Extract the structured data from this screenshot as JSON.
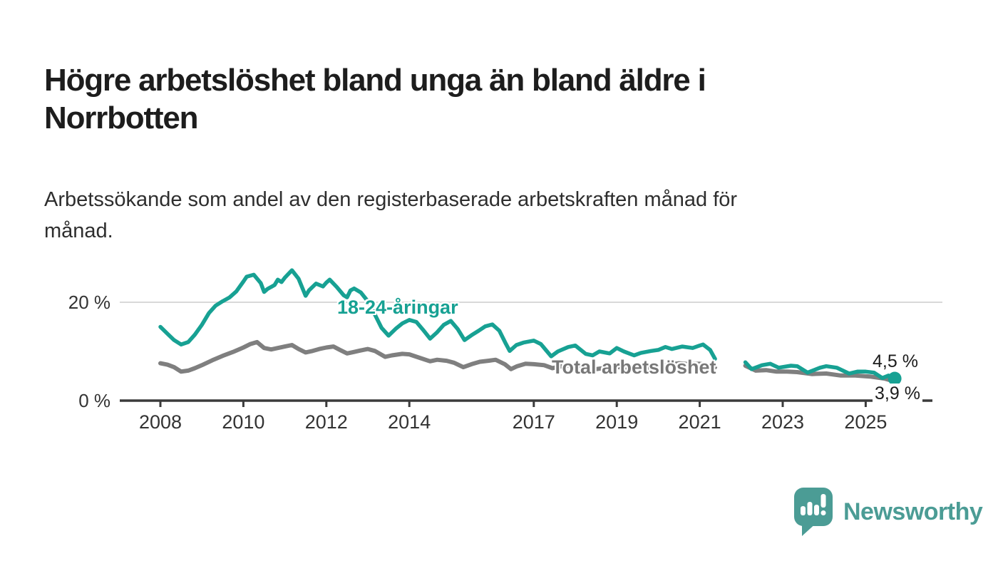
{
  "header": {
    "title": "Högre arbetslöshet bland unga än bland äldre i\nNorrbotten",
    "subtitle": "Arbetssökande som andel av den registerbaserade arbetskraften månad för\nmånad."
  },
  "branding": {
    "logo_text": "Newsworthy",
    "logo_icon": "newsworthy-speech-bubble-bar-chart-icon"
  },
  "colors": {
    "youth_line": "#17a193",
    "total_line": "#7f7f7f",
    "axis": "#3b3b3b",
    "grid": "#d9d9d9",
    "logo_teal": "#4b9c95",
    "text": "#1d1d1d"
  },
  "chart_data": {
    "type": "line",
    "title": "Högre arbetslöshet bland unga än bland äldre i Norrbotten",
    "subtitle": "Arbetssökande som andel av den registerbaserade arbetskraften månad för månad.",
    "unit": "%",
    "xlim": [
      2007.0,
      2026.6
    ],
    "ylim": [
      0,
      27.5
    ],
    "grid": "horizontal-only",
    "legend_position": "inline-labels",
    "x_ticks": [
      {
        "year": 2008,
        "label": "2008"
      },
      {
        "year": 2010,
        "label": "2010"
      },
      {
        "year": 2012,
        "label": "2012"
      },
      {
        "year": 2014,
        "label": "2014"
      },
      {
        "year": 2017,
        "label": "2017"
      },
      {
        "year": 2019,
        "label": "2019"
      },
      {
        "year": 2021,
        "label": "2021"
      },
      {
        "year": 2023,
        "label": "2023"
      },
      {
        "year": 2025,
        "label": "2025"
      }
    ],
    "y_ticks": [
      {
        "value": 0,
        "label": "0 %"
      },
      {
        "value": 20,
        "label": "20 %"
      }
    ],
    "series": [
      {
        "name": "18-24-åringar",
        "color": "#17a193",
        "end_value": 4.5,
        "end_label": "4,5 %",
        "segments": [
          [
            [
              2008.0,
              15.0
            ],
            [
              2008.17,
              13.6
            ],
            [
              2008.33,
              12.3
            ],
            [
              2008.5,
              11.4
            ],
            [
              2008.67,
              11.9
            ],
            [
              2008.83,
              13.4
            ],
            [
              2009.0,
              15.4
            ],
            [
              2009.17,
              17.8
            ],
            [
              2009.33,
              19.3
            ],
            [
              2009.5,
              20.2
            ],
            [
              2009.67,
              21.0
            ],
            [
              2009.83,
              22.2
            ],
            [
              2010.0,
              24.2
            ],
            [
              2010.08,
              25.2
            ],
            [
              2010.25,
              25.6
            ],
            [
              2010.42,
              23.9
            ],
            [
              2010.5,
              22.1
            ],
            [
              2010.58,
              22.7
            ],
            [
              2010.75,
              23.5
            ],
            [
              2010.83,
              24.6
            ],
            [
              2010.92,
              24.1
            ],
            [
              2011.0,
              25.0
            ],
            [
              2011.17,
              26.5
            ],
            [
              2011.33,
              24.8
            ],
            [
              2011.5,
              21.3
            ],
            [
              2011.58,
              22.4
            ],
            [
              2011.75,
              23.8
            ],
            [
              2011.92,
              23.2
            ],
            [
              2012.0,
              24.0
            ],
            [
              2012.08,
              24.6
            ],
            [
              2012.25,
              23.1
            ],
            [
              2012.42,
              21.4
            ],
            [
              2012.5,
              21.0
            ],
            [
              2012.58,
              22.4
            ],
            [
              2012.67,
              22.8
            ],
            [
              2012.83,
              22.0
            ],
            [
              2013.0,
              20.2
            ],
            [
              2013.17,
              17.5
            ],
            [
              2013.33,
              14.8
            ],
            [
              2013.5,
              13.2
            ],
            [
              2013.67,
              14.6
            ],
            [
              2013.83,
              15.7
            ],
            [
              2014.0,
              16.4
            ],
            [
              2014.17,
              16.0
            ],
            [
              2014.33,
              14.4
            ],
            [
              2014.5,
              12.6
            ],
            [
              2014.67,
              13.9
            ],
            [
              2014.83,
              15.4
            ],
            [
              2015.0,
              16.2
            ],
            [
              2015.17,
              14.5
            ],
            [
              2015.33,
              12.3
            ],
            [
              2015.5,
              13.3
            ],
            [
              2015.67,
              14.2
            ],
            [
              2015.83,
              15.1
            ],
            [
              2016.0,
              15.5
            ],
            [
              2016.17,
              14.2
            ],
            [
              2016.33,
              11.5
            ],
            [
              2016.42,
              10.1
            ],
            [
              2016.58,
              11.3
            ],
            [
              2016.75,
              11.8
            ],
            [
              2017.0,
              12.2
            ],
            [
              2017.17,
              11.5
            ],
            [
              2017.42,
              9.0
            ],
            [
              2017.58,
              10.0
            ],
            [
              2017.83,
              10.9
            ],
            [
              2018.0,
              11.2
            ],
            [
              2018.25,
              9.5
            ],
            [
              2018.42,
              9.2
            ],
            [
              2018.58,
              10.0
            ],
            [
              2018.83,
              9.6
            ],
            [
              2019.0,
              10.7
            ],
            [
              2019.17,
              10.0
            ],
            [
              2019.42,
              9.2
            ],
            [
              2019.58,
              9.7
            ],
            [
              2019.83,
              10.1
            ],
            [
              2020.0,
              10.3
            ],
            [
              2020.17,
              10.9
            ],
            [
              2020.33,
              10.5
            ],
            [
              2020.58,
              11.0
            ],
            [
              2020.83,
              10.7
            ],
            [
              2021.0,
              11.2
            ],
            [
              2021.08,
              11.4
            ],
            [
              2021.25,
              10.3
            ],
            [
              2021.37,
              8.5
            ]
          ],
          [
            [
              2022.1,
              7.8
            ],
            [
              2022.25,
              6.4
            ],
            [
              2022.5,
              7.2
            ],
            [
              2022.7,
              7.5
            ],
            [
              2022.9,
              6.7
            ],
            [
              2023.2,
              7.1
            ],
            [
              2023.35,
              7.0
            ],
            [
              2023.6,
              5.7
            ],
            [
              2023.9,
              6.7
            ],
            [
              2024.05,
              7.0
            ],
            [
              2024.3,
              6.7
            ],
            [
              2024.6,
              5.5
            ],
            [
              2024.8,
              5.9
            ],
            [
              2025.0,
              5.9
            ],
            [
              2025.2,
              5.7
            ],
            [
              2025.4,
              4.6
            ],
            [
              2025.55,
              5.1
            ],
            [
              2025.7,
              4.5
            ]
          ]
        ]
      },
      {
        "name": "Total arbetslöshet",
        "color": "#7f7f7f",
        "end_value": 3.9,
        "end_label": "3,9 %",
        "segments": [
          [
            [
              2008.0,
              7.6
            ],
            [
              2008.17,
              7.3
            ],
            [
              2008.33,
              6.8
            ],
            [
              2008.5,
              5.9
            ],
            [
              2008.67,
              6.1
            ],
            [
              2008.83,
              6.6
            ],
            [
              2009.0,
              7.2
            ],
            [
              2009.25,
              8.2
            ],
            [
              2009.5,
              9.1
            ],
            [
              2009.75,
              9.9
            ],
            [
              2010.0,
              10.8
            ],
            [
              2010.17,
              11.5
            ],
            [
              2010.33,
              11.9
            ],
            [
              2010.5,
              10.7
            ],
            [
              2010.67,
              10.4
            ],
            [
              2010.83,
              10.7
            ],
            [
              2011.0,
              11.0
            ],
            [
              2011.17,
              11.3
            ],
            [
              2011.33,
              10.5
            ],
            [
              2011.5,
              9.8
            ],
            [
              2011.67,
              10.1
            ],
            [
              2011.83,
              10.5
            ],
            [
              2012.0,
              10.8
            ],
            [
              2012.17,
              11.0
            ],
            [
              2012.33,
              10.3
            ],
            [
              2012.5,
              9.6
            ],
            [
              2012.67,
              9.9
            ],
            [
              2012.83,
              10.2
            ],
            [
              2013.0,
              10.5
            ],
            [
              2013.17,
              10.1
            ],
            [
              2013.42,
              8.9
            ],
            [
              2013.58,
              9.2
            ],
            [
              2013.83,
              9.5
            ],
            [
              2014.0,
              9.4
            ],
            [
              2014.25,
              8.7
            ],
            [
              2014.5,
              8.0
            ],
            [
              2014.67,
              8.3
            ],
            [
              2014.9,
              8.1
            ],
            [
              2015.08,
              7.7
            ],
            [
              2015.3,
              6.8
            ],
            [
              2015.5,
              7.4
            ],
            [
              2015.7,
              7.9
            ],
            [
              2015.9,
              8.1
            ],
            [
              2016.08,
              8.3
            ],
            [
              2016.3,
              7.4
            ],
            [
              2016.45,
              6.4
            ],
            [
              2016.6,
              7.0
            ],
            [
              2016.8,
              7.5
            ],
            [
              2017.0,
              7.4
            ],
            [
              2017.25,
              7.2
            ],
            [
              2017.45,
              6.6
            ],
            [
              2017.6,
              6.9
            ],
            [
              2017.8,
              7.1
            ],
            [
              2018.0,
              7.2
            ],
            [
              2018.25,
              6.7
            ],
            [
              2018.5,
              6.4
            ],
            [
              2018.75,
              6.7
            ],
            [
              2019.0,
              6.9
            ],
            [
              2019.25,
              6.5
            ],
            [
              2019.5,
              6.3
            ],
            [
              2019.75,
              6.6
            ],
            [
              2020.0,
              6.8
            ],
            [
              2020.25,
              7.3
            ],
            [
              2020.5,
              7.6
            ],
            [
              2020.75,
              7.4
            ],
            [
              2021.0,
              7.5
            ],
            [
              2021.2,
              7.2
            ],
            [
              2021.37,
              6.8
            ]
          ],
          [
            [
              2022.1,
              7.1
            ],
            [
              2022.35,
              6.1
            ],
            [
              2022.6,
              6.2
            ],
            [
              2022.85,
              5.9
            ],
            [
              2023.1,
              5.9
            ],
            [
              2023.35,
              5.8
            ],
            [
              2023.7,
              5.4
            ],
            [
              2024.05,
              5.5
            ],
            [
              2024.4,
              5.1
            ],
            [
              2024.75,
              5.1
            ],
            [
              2025.1,
              4.9
            ],
            [
              2025.45,
              4.5
            ],
            [
              2025.7,
              3.9
            ]
          ]
        ]
      }
    ]
  }
}
